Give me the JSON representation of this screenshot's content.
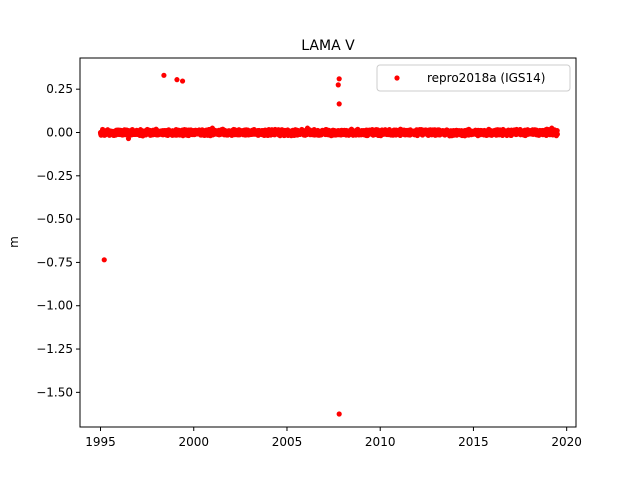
{
  "chart_data": {
    "type": "scatter",
    "title": "LAMA V",
    "xlabel": "",
    "ylabel": "m",
    "xlim": [
      1993.9,
      2020.5
    ],
    "ylim": [
      -1.7,
      0.43
    ],
    "xticks": [
      1995,
      2000,
      2005,
      2010,
      2015,
      2020
    ],
    "xtick_labels": [
      "1995",
      "2000",
      "2005",
      "2010",
      "2015",
      "2020"
    ],
    "yticks": [
      0.25,
      0.0,
      -0.25,
      -0.5,
      -0.75,
      -1.0,
      -1.25,
      -1.5
    ],
    "ytick_labels": [
      "0.25",
      "0.00",
      "−0.25",
      "−0.50",
      "−0.75",
      "−1.00",
      "−1.25",
      "−1.50"
    ],
    "grid": false,
    "legend": {
      "placement": "top-right"
    },
    "series": [
      {
        "name": "repro2018a (IGS14)",
        "color": "#ff0000",
        "marker": "circle",
        "baseline": {
          "x_start": 1995.0,
          "x_end": 2019.5,
          "y_center": 0.0,
          "band_half_width": 0.02
        },
        "outliers": [
          {
            "x": 1995.2,
            "y": -0.735
          },
          {
            "x": 1996.5,
            "y": -0.035
          },
          {
            "x": 1998.4,
            "y": 0.33
          },
          {
            "x": 1999.1,
            "y": 0.305
          },
          {
            "x": 1999.4,
            "y": 0.297
          },
          {
            "x": 2001.0,
            "y": 0.025
          },
          {
            "x": 2006.1,
            "y": 0.025
          },
          {
            "x": 2007.8,
            "y": 0.31
          },
          {
            "x": 2007.75,
            "y": 0.275
          },
          {
            "x": 2007.8,
            "y": 0.165
          },
          {
            "x": 2007.8,
            "y": -1.625
          },
          {
            "x": 2019.2,
            "y": 0.025
          }
        ]
      }
    ]
  }
}
